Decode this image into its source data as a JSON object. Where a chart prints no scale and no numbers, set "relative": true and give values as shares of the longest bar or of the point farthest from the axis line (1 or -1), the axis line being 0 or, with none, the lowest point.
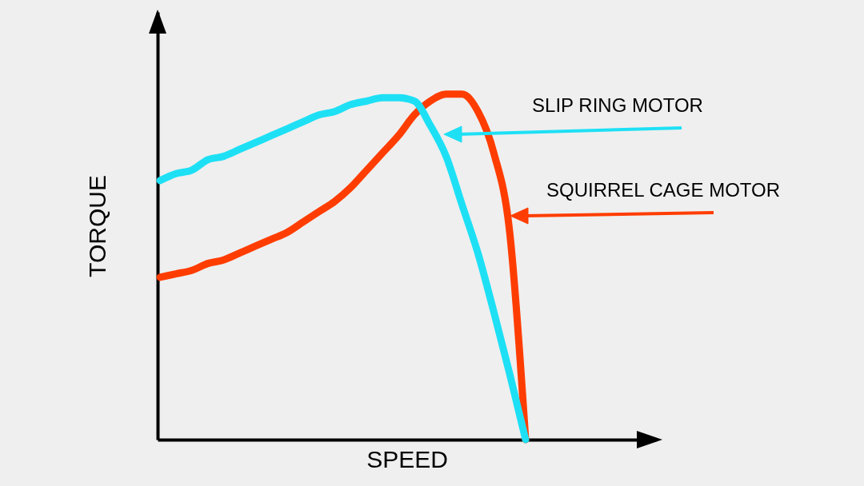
{
  "chart_data": {
    "type": "line",
    "xlabel": "SPEED",
    "ylabel": "TORQUE",
    "relative": true,
    "tick_labels": false,
    "categories": [
      null,
      null,
      null,
      null,
      null,
      null,
      null,
      null,
      null,
      null,
      null,
      null,
      null,
      null,
      null,
      null,
      null,
      null,
      null,
      null,
      null,
      null,
      null,
      null
    ],
    "series": [
      {
        "name": "SQUIRREL CAGE MOTOR",
        "color": "#ff3d00",
        "values": [
          0.47,
          0.48,
          0.49,
          0.51,
          0.52,
          0.54,
          0.56,
          0.58,
          0.6,
          0.63,
          0.66,
          0.69,
          0.73,
          0.78,
          0.83,
          0.88,
          0.94,
          0.98,
          1,
          1,
          0.95,
          0.83,
          0.6,
          0
        ]
      },
      {
        "name": "SLIP RING MOTOR",
        "color": "#1ee0f5",
        "values": [
          0.75,
          0.77,
          0.78,
          0.81,
          0.82,
          0.84,
          0.86,
          0.88,
          0.9,
          0.92,
          0.94,
          0.95,
          0.97,
          0.98,
          0.99,
          0.99,
          0.98,
          0.91,
          0.82,
          0.68,
          0.54,
          0.37,
          0.19,
          0
        ]
      }
    ]
  }
}
